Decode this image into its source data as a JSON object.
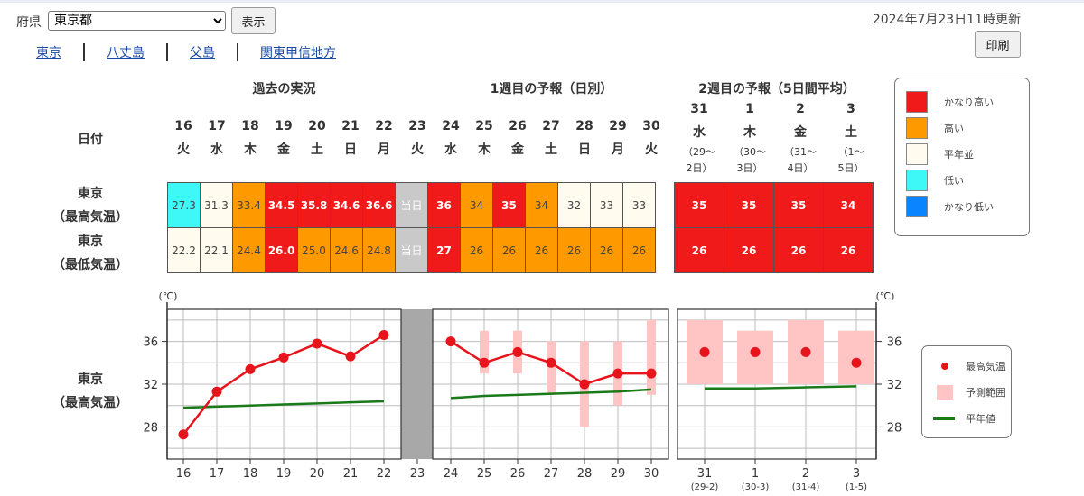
{
  "controls": {
    "pref_label": "府県",
    "pref_value": "東京都",
    "show_label": "表示",
    "updated": "2024年7月23日11時更新",
    "print_label": "印刷"
  },
  "tabs": [
    "東京",
    "八丈島",
    "父島",
    "関東甲信地方"
  ],
  "sections": {
    "past": "過去の実況",
    "week1": "1週目の予報（日別）",
    "week2": "2週目の予報（5日間平均）"
  },
  "row_labels": {
    "date": "日付",
    "max_row": [
      "東京",
      "（最高気温）"
    ],
    "min_row": [
      "東京",
      "（最低気温）"
    ],
    "graph_row": [
      "東京",
      "（最高気温）"
    ]
  },
  "days": [
    {
      "d": "16",
      "w": "火"
    },
    {
      "d": "17",
      "w": "水"
    },
    {
      "d": "18",
      "w": "木"
    },
    {
      "d": "19",
      "w": "金"
    },
    {
      "d": "20",
      "w": "土"
    },
    {
      "d": "21",
      "w": "日"
    },
    {
      "d": "22",
      "w": "月"
    },
    {
      "d": "23",
      "w": "火"
    },
    {
      "d": "24",
      "w": "水"
    },
    {
      "d": "25",
      "w": "木"
    },
    {
      "d": "26",
      "w": "金"
    },
    {
      "d": "27",
      "w": "土"
    },
    {
      "d": "28",
      "w": "日"
    },
    {
      "d": "29",
      "w": "月"
    },
    {
      "d": "30",
      "w": "火"
    }
  ],
  "week2_days": [
    {
      "d": "31",
      "w": "水",
      "range": "（29〜",
      "range2": "2日）",
      "axis": "(29-2)"
    },
    {
      "d": "1",
      "w": "木",
      "range": "（30〜",
      "range2": "3日）",
      "axis": "(30-3)"
    },
    {
      "d": "2",
      "w": "金",
      "range": "（31〜",
      "range2": "4日）",
      "axis": "(31-4)"
    },
    {
      "d": "3",
      "w": "土",
      "range": "（1〜",
      "range2": "5日）",
      "axis": "(1-5)"
    }
  ],
  "today_label": "当日",
  "max_cells": [
    {
      "v": "27.3",
      "c": "l"
    },
    {
      "v": "31.3",
      "c": "n"
    },
    {
      "v": "33.4",
      "c": "h"
    },
    {
      "v": "34.5",
      "c": "kh"
    },
    {
      "v": "35.8",
      "c": "kh"
    },
    {
      "v": "34.6",
      "c": "kh"
    },
    {
      "v": "36.6",
      "c": "kh"
    },
    {
      "v": "当日",
      "c": "today"
    },
    {
      "v": "36",
      "c": "kh"
    },
    {
      "v": "34",
      "c": "h"
    },
    {
      "v": "35",
      "c": "kh"
    },
    {
      "v": "34",
      "c": "h"
    },
    {
      "v": "32",
      "c": "n"
    },
    {
      "v": "33",
      "c": "n"
    },
    {
      "v": "33",
      "c": "n"
    }
  ],
  "min_cells": [
    {
      "v": "22.2",
      "c": "n"
    },
    {
      "v": "22.1",
      "c": "n"
    },
    {
      "v": "24.4",
      "c": "h"
    },
    {
      "v": "26.0",
      "c": "kh"
    },
    {
      "v": "25.0",
      "c": "h"
    },
    {
      "v": "24.6",
      "c": "h"
    },
    {
      "v": "24.8",
      "c": "h"
    },
    {
      "v": "当日",
      "c": "today"
    },
    {
      "v": "27",
      "c": "kh"
    },
    {
      "v": "26",
      "c": "h"
    },
    {
      "v": "26",
      "c": "h"
    },
    {
      "v": "26",
      "c": "h"
    },
    {
      "v": "26",
      "c": "h"
    },
    {
      "v": "26",
      "c": "h"
    },
    {
      "v": "26",
      "c": "h"
    }
  ],
  "week2_max": [
    {
      "v": "35",
      "c": "kh"
    },
    {
      "v": "35",
      "c": "kh"
    },
    {
      "v": "35",
      "c": "kh"
    },
    {
      "v": "34",
      "c": "kh"
    }
  ],
  "week2_min": [
    {
      "v": "26",
      "c": "kh"
    },
    {
      "v": "26",
      "c": "kh"
    },
    {
      "v": "26",
      "c": "kh"
    },
    {
      "v": "26",
      "c": "kh"
    }
  ],
  "legend": [
    {
      "label": "かなり高い",
      "color": "#f01a1a"
    },
    {
      "label": "高い",
      "color": "#ff9900"
    },
    {
      "label": "平年並",
      "color": "#fffbef"
    },
    {
      "label": "低い",
      "color": "#3ef8f8"
    },
    {
      "label": "かなり低い",
      "color": "#0a84ff"
    }
  ],
  "chart_data": {
    "type": "line",
    "y_unit": "(℃)",
    "ylim": [
      25,
      39
    ],
    "yticks": [
      28,
      32,
      36
    ],
    "grid": true,
    "observed_max": {
      "name": "最高気温",
      "x": [
        "16",
        "17",
        "18",
        "19",
        "20",
        "21",
        "22"
      ],
      "values": [
        27.3,
        31.3,
        33.4,
        34.5,
        35.8,
        34.6,
        36.6
      ]
    },
    "forecast_max": {
      "x": [
        "24",
        "25",
        "26",
        "27",
        "28",
        "29",
        "30"
      ],
      "values": [
        36,
        34,
        35,
        34,
        32,
        33,
        33
      ]
    },
    "forecast_range": {
      "name": "予測範囲",
      "x": [
        "25",
        "26",
        "27",
        "28",
        "29",
        "30"
      ],
      "low": [
        33,
        33,
        31,
        28,
        30,
        31
      ],
      "high": [
        37,
        37,
        36,
        36,
        36,
        38
      ]
    },
    "normal": {
      "name": "平年値",
      "daily": [
        29.8,
        29.9,
        30.0,
        30.1,
        30.2,
        30.3,
        30.4,
        30.5,
        30.7,
        30.9,
        31.0,
        31.1,
        31.2,
        31.3,
        31.5
      ]
    },
    "week2": {
      "x": [
        "31",
        "1",
        "2",
        "3"
      ],
      "values": [
        35,
        35,
        35,
        34
      ],
      "low": [
        32,
        32,
        32,
        32
      ],
      "high": [
        38,
        37,
        38,
        37
      ],
      "normal": [
        31.6,
        31.6,
        31.7,
        31.8
      ]
    },
    "today_x": "23",
    "colors": {
      "point": "#e8141c",
      "range": "#ffc4c4",
      "normal": "#1a7a1a",
      "today": "#a8a8a8"
    }
  },
  "graph_legend": [
    {
      "label": "最高気温"
    },
    {
      "label": "予測範囲"
    },
    {
      "label": "平年値"
    }
  ]
}
